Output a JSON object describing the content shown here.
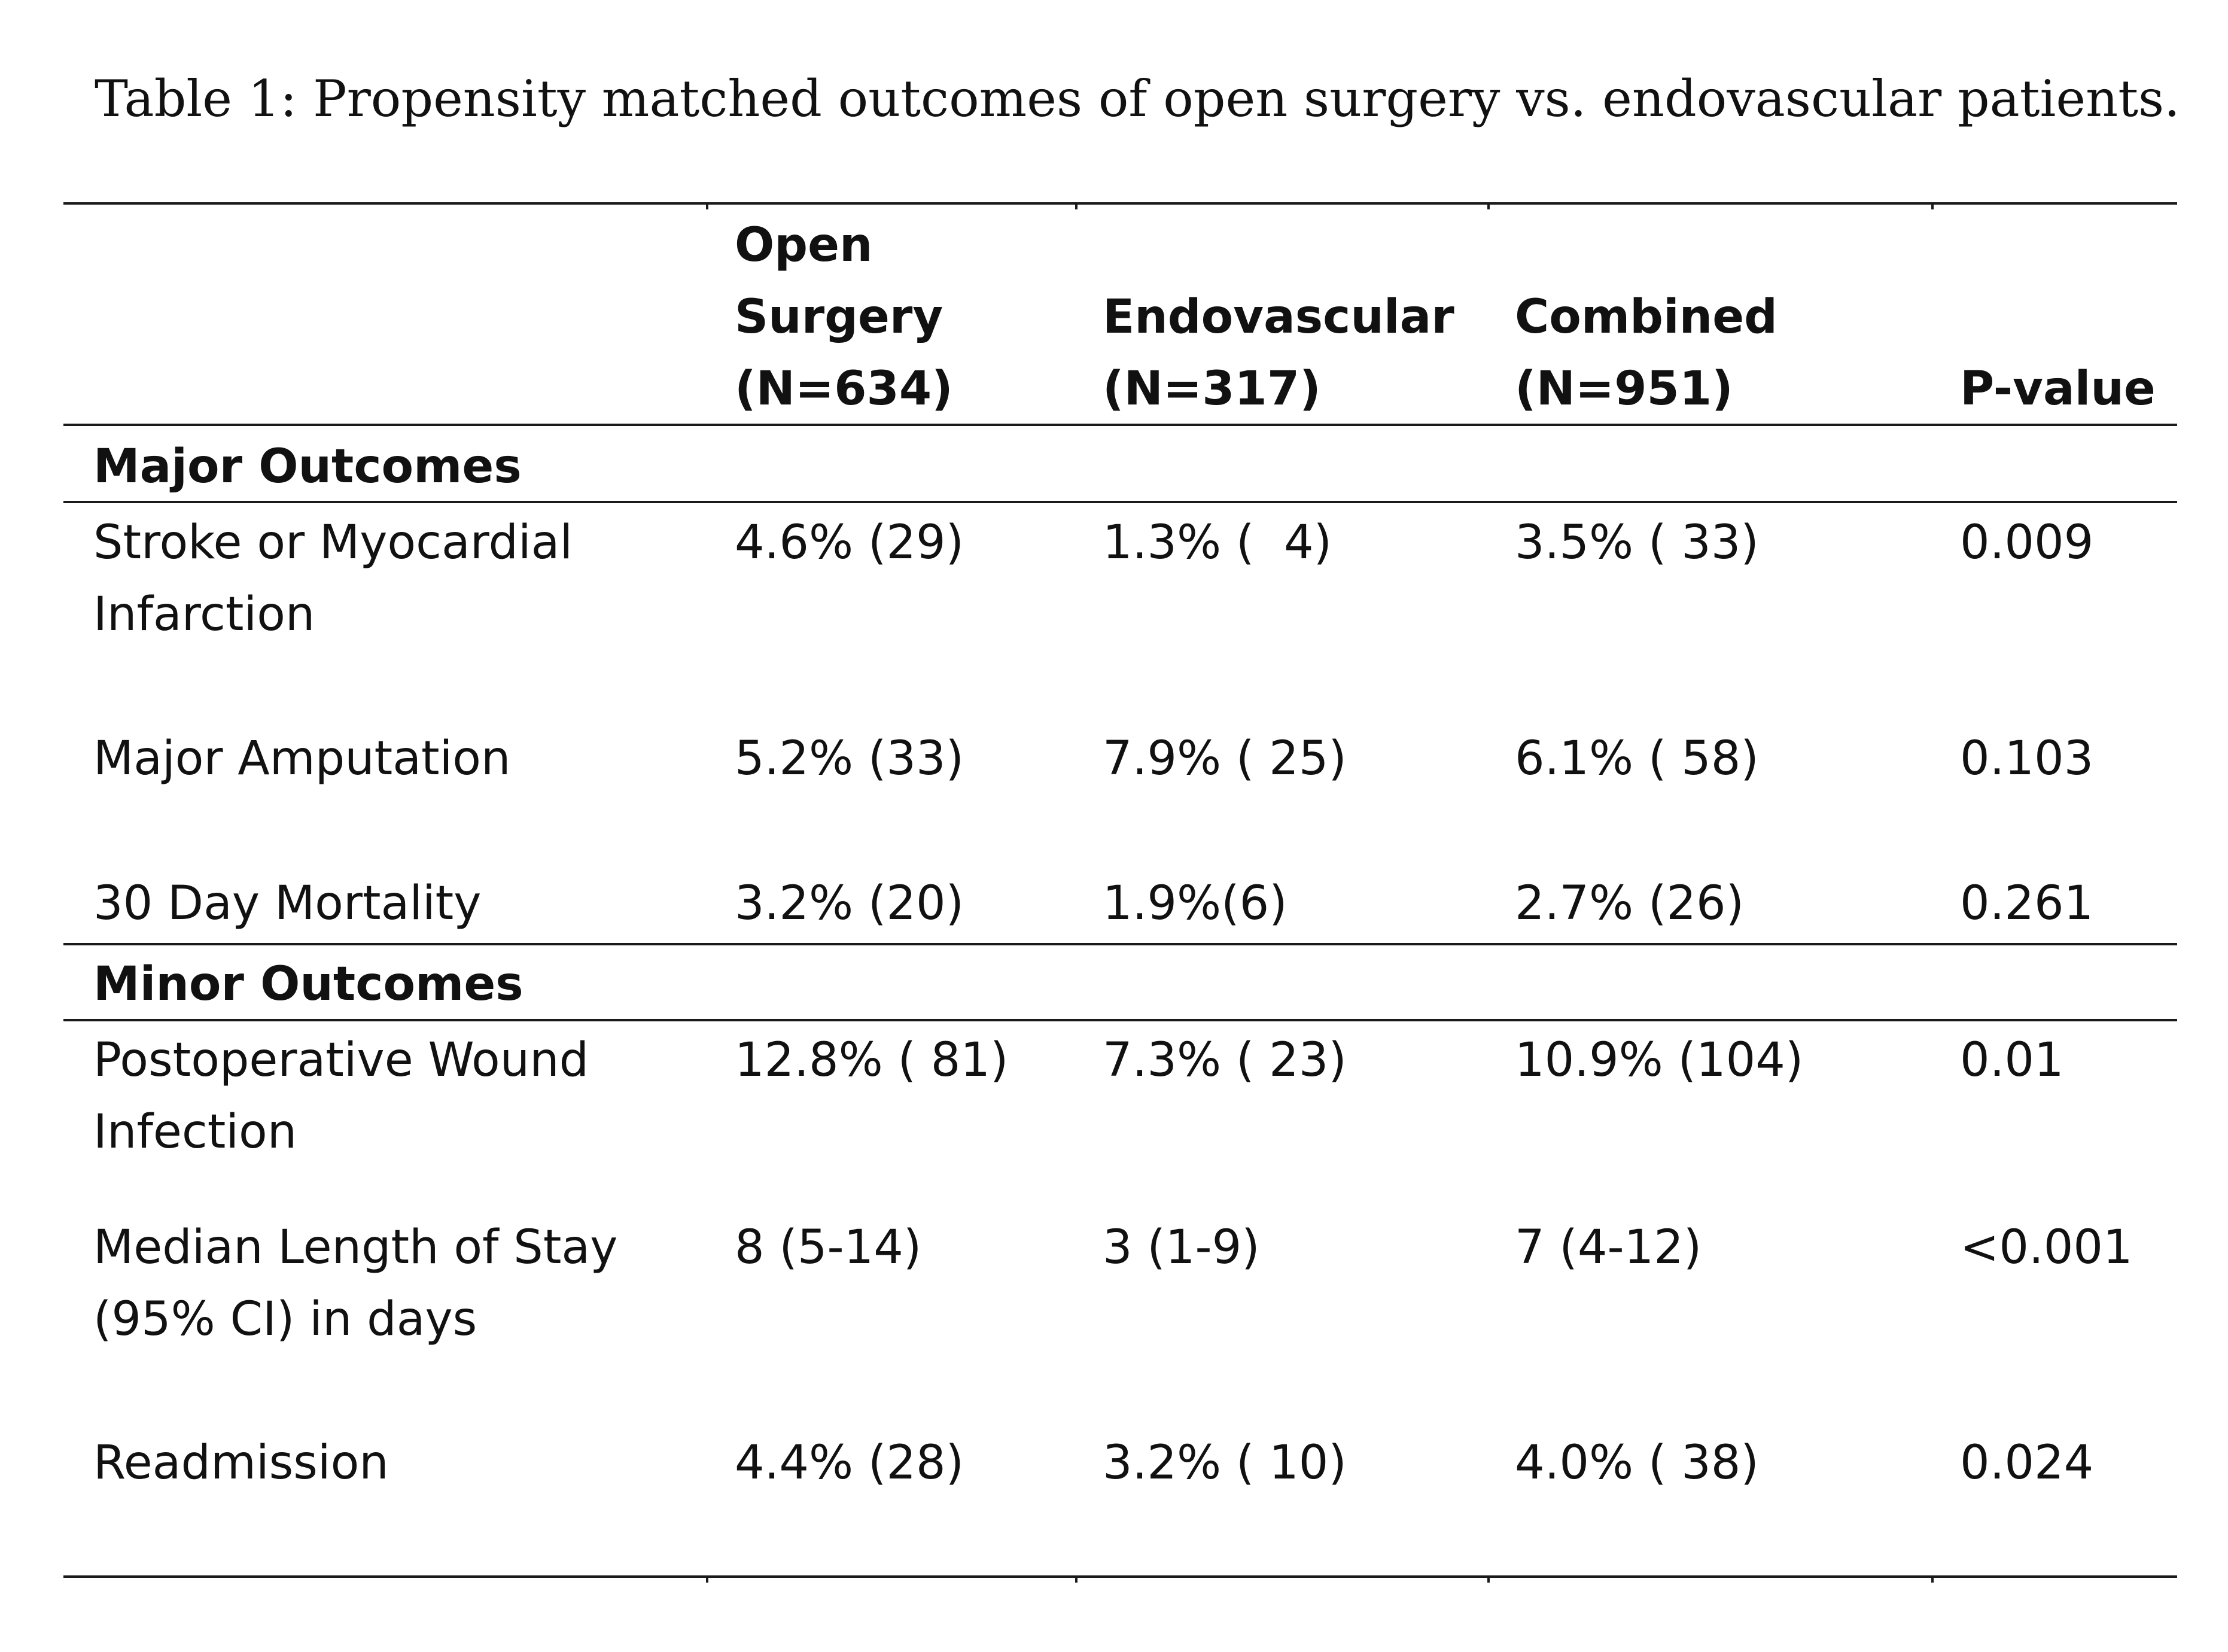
{
  "caption": "Table 1: Propensity matched outcomes of open surgery vs. endovascular patients.",
  "columns": [
    {
      "lines": [
        "Open",
        "Surgery",
        "(N=634)"
      ]
    },
    {
      "lines": [
        "Endovascular",
        "(N=317)"
      ]
    },
    {
      "lines": [
        "Combined",
        "(N=951)"
      ]
    },
    {
      "lines": [
        "P-value"
      ]
    }
  ],
  "sections": [
    {
      "title": "Major Outcomes",
      "rows": [
        {
          "label": [
            "Stroke or Myocardial",
            "Infarction"
          ],
          "open": "4.6% (29)",
          "endo": "1.3% (  4)",
          "combined": "3.5% ( 33)",
          "p": "0.009"
        },
        {
          "label": [
            "Major Amputation"
          ],
          "open": "5.2% (33)",
          "endo": "7.9% ( 25)",
          "combined": "6.1% ( 58)",
          "p": "0.103"
        },
        {
          "label": [
            "30 Day Mortality"
          ],
          "open": "3.2% (20)",
          "endo": "1.9%(6)",
          "combined": "2.7% (26)",
          "p": "0.261"
        }
      ]
    },
    {
      "title": "Minor Outcomes",
      "rows": [
        {
          "label": [
            "Postoperative Wound",
            "Infection"
          ],
          "open": "12.8% ( 81)",
          "endo": "7.3% ( 23)",
          "combined": "10.9% (104)",
          "p": "0.01"
        },
        {
          "label": [
            "Median Length of Stay",
            "(95% CI) in days"
          ],
          "open": "8 (5-14)",
          "endo": "3 (1-9)",
          "combined": "7 (4-12)",
          "p": "<0.001"
        },
        {
          "label": [
            "Readmission"
          ],
          "open": "4.4% (28)",
          "endo": "3.2% ( 10)",
          "combined": "4.0% ( 38)",
          "p": "0.024"
        }
      ]
    }
  ]
}
